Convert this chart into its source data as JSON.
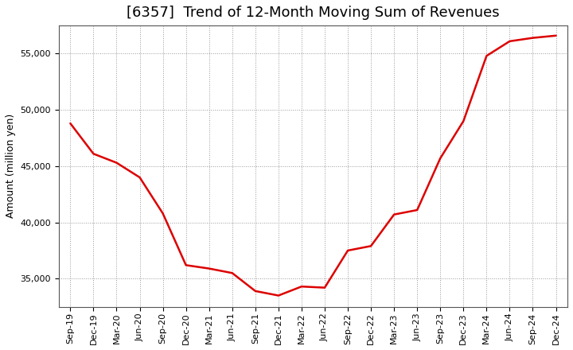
{
  "title": "[6357]  Trend of 12-Month Moving Sum of Revenues",
  "ylabel": "Amount (million yen)",
  "line_color": "#dd0000",
  "background_color": "#ffffff",
  "plot_bg_color": "#ffffff",
  "grid_color": "#999999",
  "xlabels": [
    "Sep-19",
    "Dec-19",
    "Mar-20",
    "Jun-20",
    "Sep-20",
    "Dec-20",
    "Mar-21",
    "Jun-21",
    "Sep-21",
    "Dec-21",
    "Mar-22",
    "Jun-22",
    "Sep-22",
    "Dec-22",
    "Mar-23",
    "Jun-23",
    "Sep-23",
    "Dec-23",
    "Mar-24",
    "Jun-24",
    "Sep-24",
    "Dec-24"
  ],
  "values": [
    48800,
    46100,
    45300,
    44000,
    40800,
    36200,
    35900,
    35500,
    33900,
    33500,
    34300,
    34200,
    37500,
    37900,
    40700,
    41100,
    45700,
    49000,
    54800,
    56100,
    56400,
    56600
  ],
  "ylim": [
    32500,
    57500
  ],
  "yticks": [
    35000,
    40000,
    45000,
    50000,
    55000
  ],
  "title_fontsize": 13,
  "axis_label_fontsize": 9,
  "tick_fontsize": 8,
  "line_width": 1.8
}
